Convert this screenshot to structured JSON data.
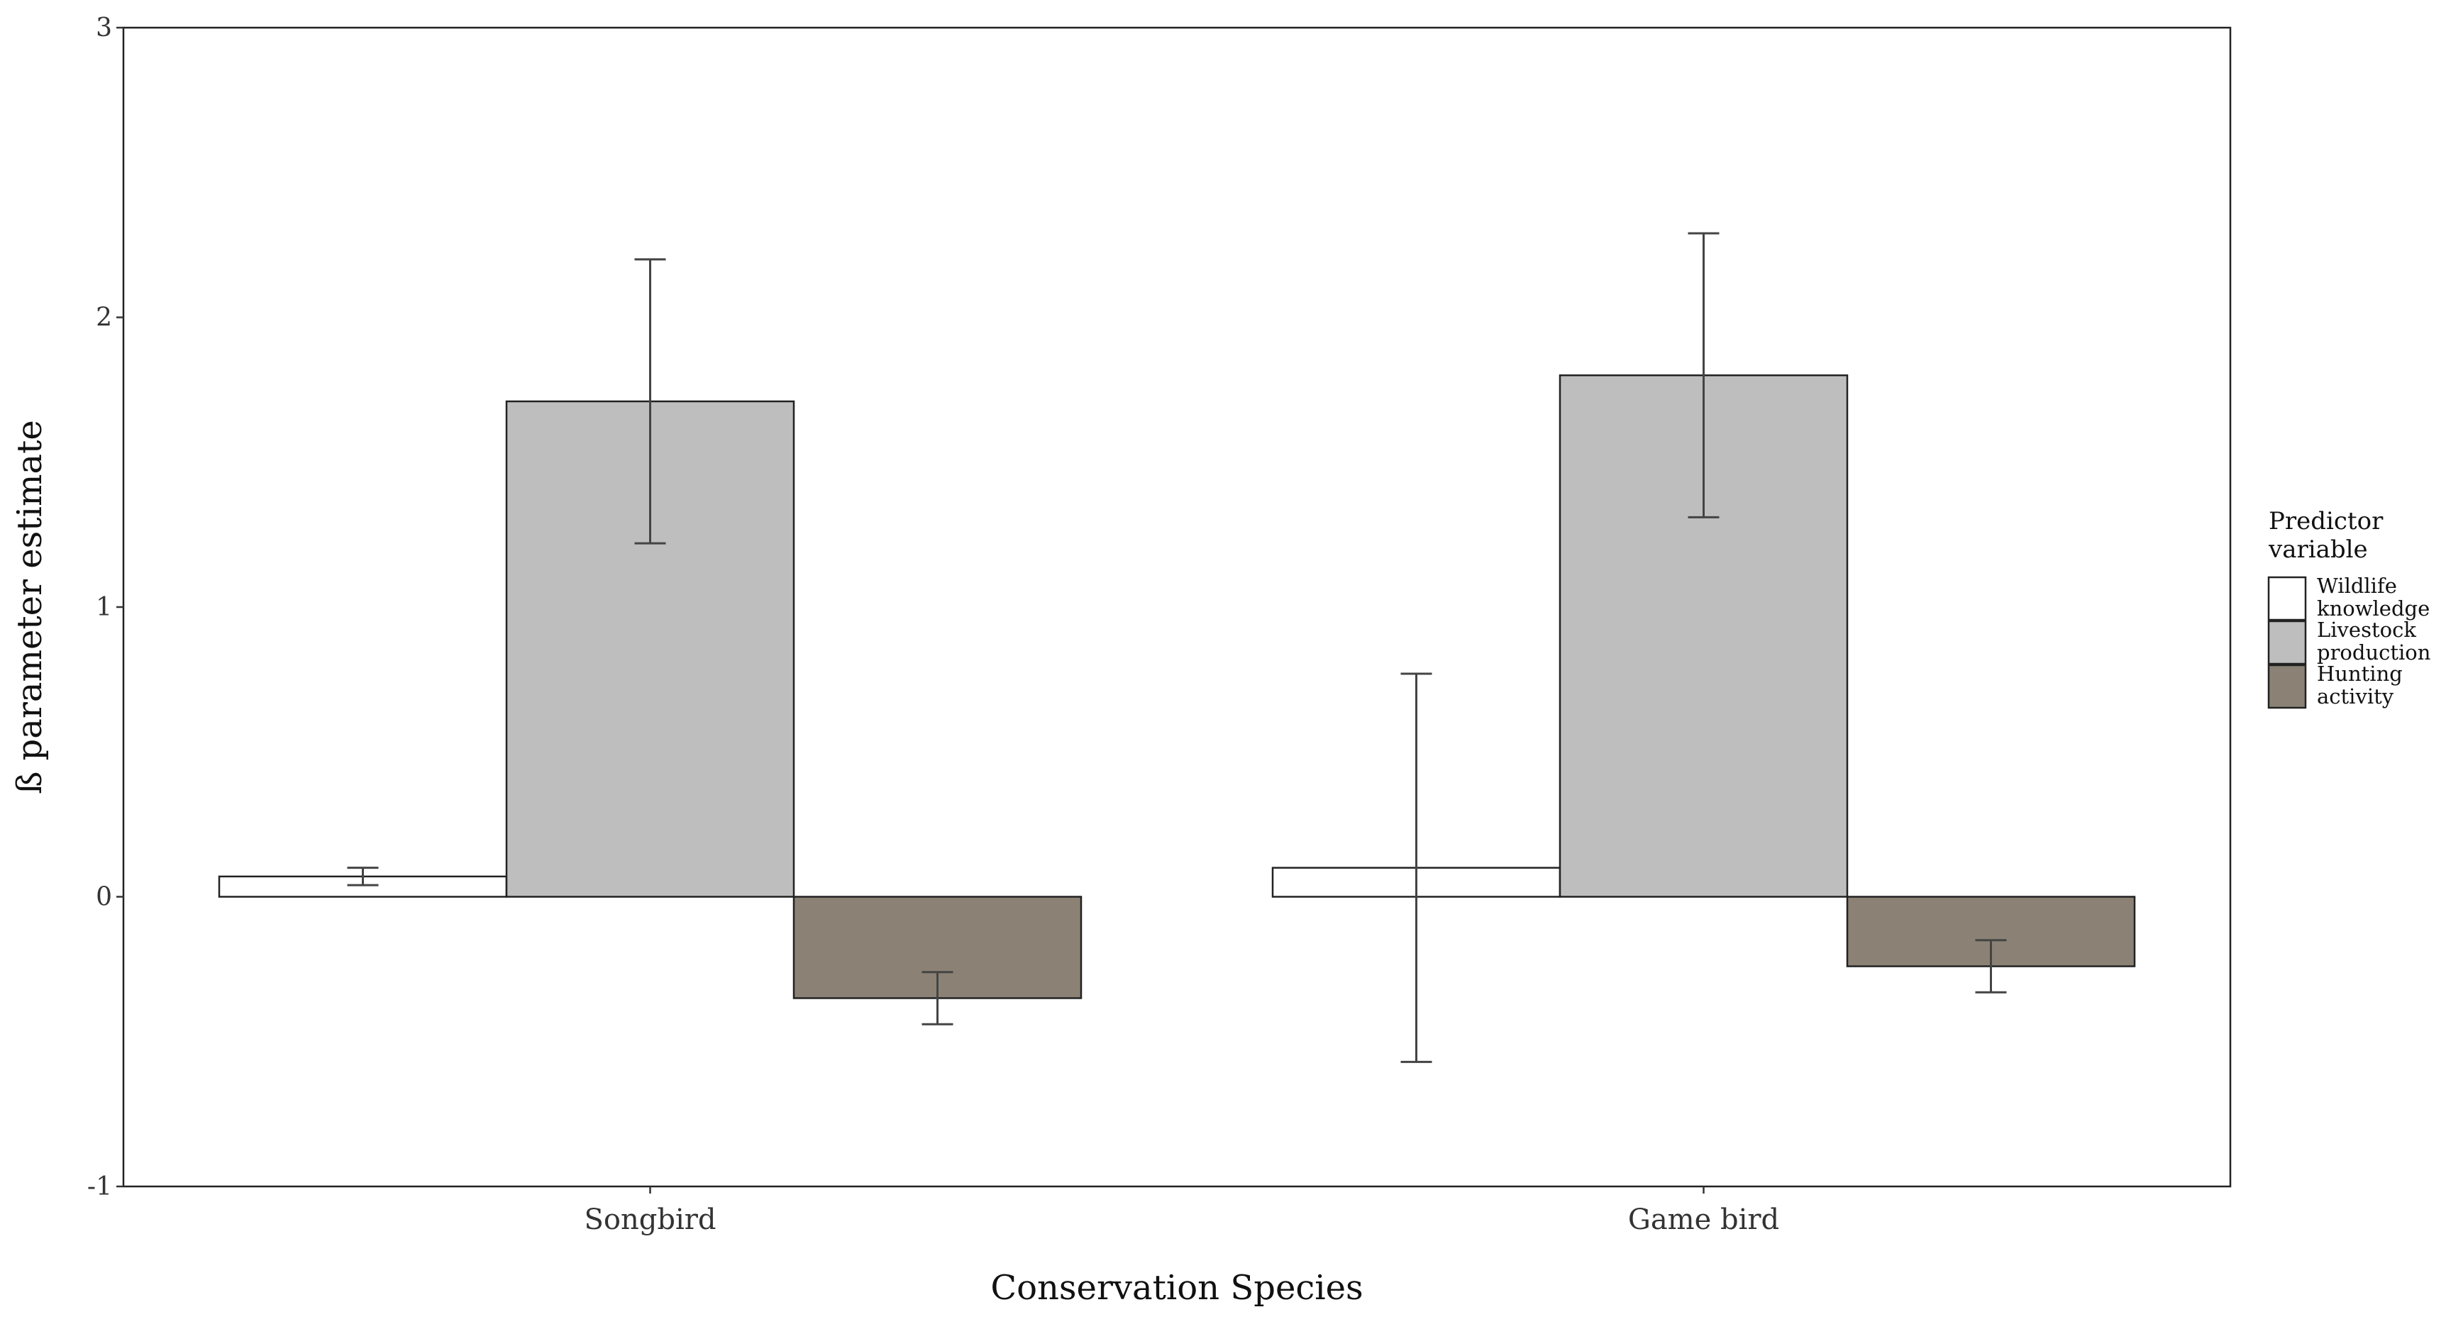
{
  "chart_data": {
    "type": "bar",
    "title": "",
    "xlabel": "Conservation Species",
    "ylabel": "ß parameter estimate",
    "categories": [
      "Songbird",
      "Game bird"
    ],
    "ylim": [
      -1,
      3
    ],
    "yticks": [
      "-1",
      "0",
      "1",
      "2",
      "3"
    ],
    "grid": false,
    "legend": {
      "title_lines": [
        "Predictor",
        "variable"
      ],
      "position": "right"
    },
    "series": [
      {
        "name": "Wildlife knowledge",
        "label_lines": [
          "Wildlife",
          "knowledge"
        ],
        "color": "#ffffff",
        "values": [
          0.07,
          0.1
        ],
        "error_low": [
          0.04,
          -0.57
        ],
        "error_high": [
          0.1,
          0.77
        ]
      },
      {
        "name": "Livestock production",
        "label_lines": [
          "Livestock",
          "production"
        ],
        "color": "#bebebe",
        "values": [
          1.71,
          1.8
        ],
        "error_low": [
          1.22,
          1.31
        ],
        "error_high": [
          2.2,
          2.29
        ]
      },
      {
        "name": "Hunting activity",
        "label_lines": [
          "Hunting",
          "activity"
        ],
        "color": "#8b8175",
        "values": [
          -0.35,
          -0.24
        ],
        "error_low": [
          -0.44,
          -0.33
        ],
        "error_high": [
          -0.26,
          -0.15
        ]
      }
    ]
  }
}
